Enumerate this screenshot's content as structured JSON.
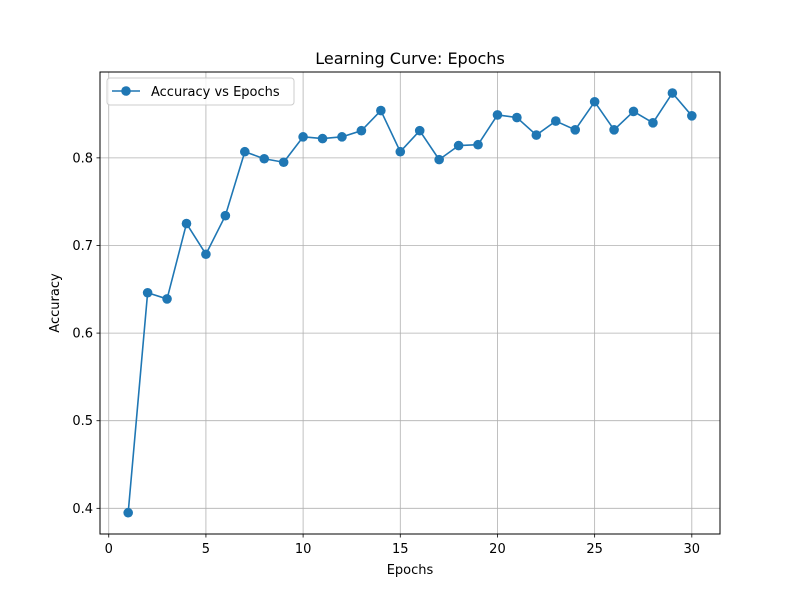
{
  "chart_data": {
    "type": "line",
    "title": "Learning Curve: Epochs",
    "xlabel": "Epochs",
    "ylabel": "Accuracy",
    "xlim": [
      -0.45,
      31.45
    ],
    "ylim": [
      0.3707,
      0.898
    ],
    "xticks": [
      0,
      5,
      10,
      15,
      20,
      25,
      30
    ],
    "yticks": [
      0.4,
      0.5,
      0.6,
      0.7,
      0.8
    ],
    "grid": true,
    "legend_position": "top-left",
    "series": [
      {
        "name": "Accuracy vs Epochs",
        "color": "#1f77b4",
        "marker": "circle",
        "x": [
          1,
          2,
          3,
          4,
          5,
          6,
          7,
          8,
          9,
          10,
          11,
          12,
          13,
          14,
          15,
          16,
          17,
          18,
          19,
          20,
          21,
          22,
          23,
          24,
          25,
          26,
          27,
          28,
          29,
          30
        ],
        "y": [
          0.395,
          0.646,
          0.639,
          0.725,
          0.69,
          0.734,
          0.807,
          0.799,
          0.795,
          0.824,
          0.822,
          0.824,
          0.831,
          0.854,
          0.807,
          0.831,
          0.798,
          0.814,
          0.815,
          0.849,
          0.846,
          0.826,
          0.842,
          0.832,
          0.864,
          0.832,
          0.853,
          0.84,
          0.874,
          0.848
        ]
      }
    ]
  }
}
